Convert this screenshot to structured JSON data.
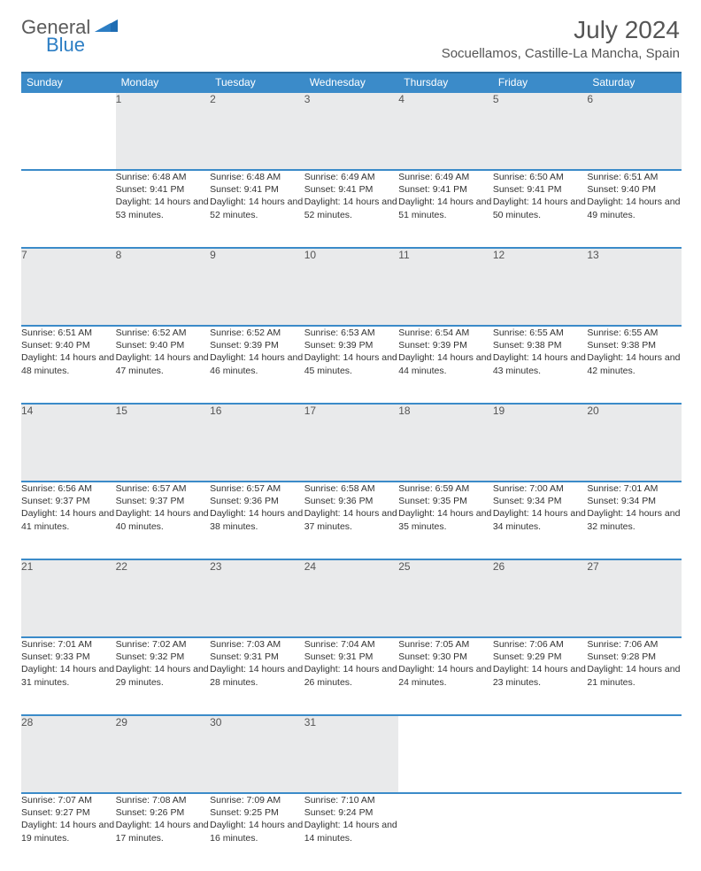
{
  "brand": {
    "part1": "General",
    "part2": "Blue"
  },
  "title": "July 2024",
  "location": "Socuellamos, Castille-La Mancha, Spain",
  "weekdays": [
    "Sunday",
    "Monday",
    "Tuesday",
    "Wednesday",
    "Thursday",
    "Friday",
    "Saturday"
  ],
  "colors": {
    "header_bg": "#3b8bc9",
    "header_border": "#2b6fa3",
    "daynum_bg": "#e9eaeb",
    "text": "#333333",
    "muted": "#555555",
    "brand_gray": "#5a5a5a",
    "brand_blue": "#2c7ec4"
  },
  "weeks": [
    [
      null,
      {
        "n": "1",
        "sr": "Sunrise: 6:48 AM",
        "ss": "Sunset: 9:41 PM",
        "dl": "Daylight: 14 hours and 53 minutes."
      },
      {
        "n": "2",
        "sr": "Sunrise: 6:48 AM",
        "ss": "Sunset: 9:41 PM",
        "dl": "Daylight: 14 hours and 52 minutes."
      },
      {
        "n": "3",
        "sr": "Sunrise: 6:49 AM",
        "ss": "Sunset: 9:41 PM",
        "dl": "Daylight: 14 hours and 52 minutes."
      },
      {
        "n": "4",
        "sr": "Sunrise: 6:49 AM",
        "ss": "Sunset: 9:41 PM",
        "dl": "Daylight: 14 hours and 51 minutes."
      },
      {
        "n": "5",
        "sr": "Sunrise: 6:50 AM",
        "ss": "Sunset: 9:41 PM",
        "dl": "Daylight: 14 hours and 50 minutes."
      },
      {
        "n": "6",
        "sr": "Sunrise: 6:51 AM",
        "ss": "Sunset: 9:40 PM",
        "dl": "Daylight: 14 hours and 49 minutes."
      }
    ],
    [
      {
        "n": "7",
        "sr": "Sunrise: 6:51 AM",
        "ss": "Sunset: 9:40 PM",
        "dl": "Daylight: 14 hours and 48 minutes."
      },
      {
        "n": "8",
        "sr": "Sunrise: 6:52 AM",
        "ss": "Sunset: 9:40 PM",
        "dl": "Daylight: 14 hours and 47 minutes."
      },
      {
        "n": "9",
        "sr": "Sunrise: 6:52 AM",
        "ss": "Sunset: 9:39 PM",
        "dl": "Daylight: 14 hours and 46 minutes."
      },
      {
        "n": "10",
        "sr": "Sunrise: 6:53 AM",
        "ss": "Sunset: 9:39 PM",
        "dl": "Daylight: 14 hours and 45 minutes."
      },
      {
        "n": "11",
        "sr": "Sunrise: 6:54 AM",
        "ss": "Sunset: 9:39 PM",
        "dl": "Daylight: 14 hours and 44 minutes."
      },
      {
        "n": "12",
        "sr": "Sunrise: 6:55 AM",
        "ss": "Sunset: 9:38 PM",
        "dl": "Daylight: 14 hours and 43 minutes."
      },
      {
        "n": "13",
        "sr": "Sunrise: 6:55 AM",
        "ss": "Sunset: 9:38 PM",
        "dl": "Daylight: 14 hours and 42 minutes."
      }
    ],
    [
      {
        "n": "14",
        "sr": "Sunrise: 6:56 AM",
        "ss": "Sunset: 9:37 PM",
        "dl": "Daylight: 14 hours and 41 minutes."
      },
      {
        "n": "15",
        "sr": "Sunrise: 6:57 AM",
        "ss": "Sunset: 9:37 PM",
        "dl": "Daylight: 14 hours and 40 minutes."
      },
      {
        "n": "16",
        "sr": "Sunrise: 6:57 AM",
        "ss": "Sunset: 9:36 PM",
        "dl": "Daylight: 14 hours and 38 minutes."
      },
      {
        "n": "17",
        "sr": "Sunrise: 6:58 AM",
        "ss": "Sunset: 9:36 PM",
        "dl": "Daylight: 14 hours and 37 minutes."
      },
      {
        "n": "18",
        "sr": "Sunrise: 6:59 AM",
        "ss": "Sunset: 9:35 PM",
        "dl": "Daylight: 14 hours and 35 minutes."
      },
      {
        "n": "19",
        "sr": "Sunrise: 7:00 AM",
        "ss": "Sunset: 9:34 PM",
        "dl": "Daylight: 14 hours and 34 minutes."
      },
      {
        "n": "20",
        "sr": "Sunrise: 7:01 AM",
        "ss": "Sunset: 9:34 PM",
        "dl": "Daylight: 14 hours and 32 minutes."
      }
    ],
    [
      {
        "n": "21",
        "sr": "Sunrise: 7:01 AM",
        "ss": "Sunset: 9:33 PM",
        "dl": "Daylight: 14 hours and 31 minutes."
      },
      {
        "n": "22",
        "sr": "Sunrise: 7:02 AM",
        "ss": "Sunset: 9:32 PM",
        "dl": "Daylight: 14 hours and 29 minutes."
      },
      {
        "n": "23",
        "sr": "Sunrise: 7:03 AM",
        "ss": "Sunset: 9:31 PM",
        "dl": "Daylight: 14 hours and 28 minutes."
      },
      {
        "n": "24",
        "sr": "Sunrise: 7:04 AM",
        "ss": "Sunset: 9:31 PM",
        "dl": "Daylight: 14 hours and 26 minutes."
      },
      {
        "n": "25",
        "sr": "Sunrise: 7:05 AM",
        "ss": "Sunset: 9:30 PM",
        "dl": "Daylight: 14 hours and 24 minutes."
      },
      {
        "n": "26",
        "sr": "Sunrise: 7:06 AM",
        "ss": "Sunset: 9:29 PM",
        "dl": "Daylight: 14 hours and 23 minutes."
      },
      {
        "n": "27",
        "sr": "Sunrise: 7:06 AM",
        "ss": "Sunset: 9:28 PM",
        "dl": "Daylight: 14 hours and 21 minutes."
      }
    ],
    [
      {
        "n": "28",
        "sr": "Sunrise: 7:07 AM",
        "ss": "Sunset: 9:27 PM",
        "dl": "Daylight: 14 hours and 19 minutes."
      },
      {
        "n": "29",
        "sr": "Sunrise: 7:08 AM",
        "ss": "Sunset: 9:26 PM",
        "dl": "Daylight: 14 hours and 17 minutes."
      },
      {
        "n": "30",
        "sr": "Sunrise: 7:09 AM",
        "ss": "Sunset: 9:25 PM",
        "dl": "Daylight: 14 hours and 16 minutes."
      },
      {
        "n": "31",
        "sr": "Sunrise: 7:10 AM",
        "ss": "Sunset: 9:24 PM",
        "dl": "Daylight: 14 hours and 14 minutes."
      },
      null,
      null,
      null
    ]
  ]
}
